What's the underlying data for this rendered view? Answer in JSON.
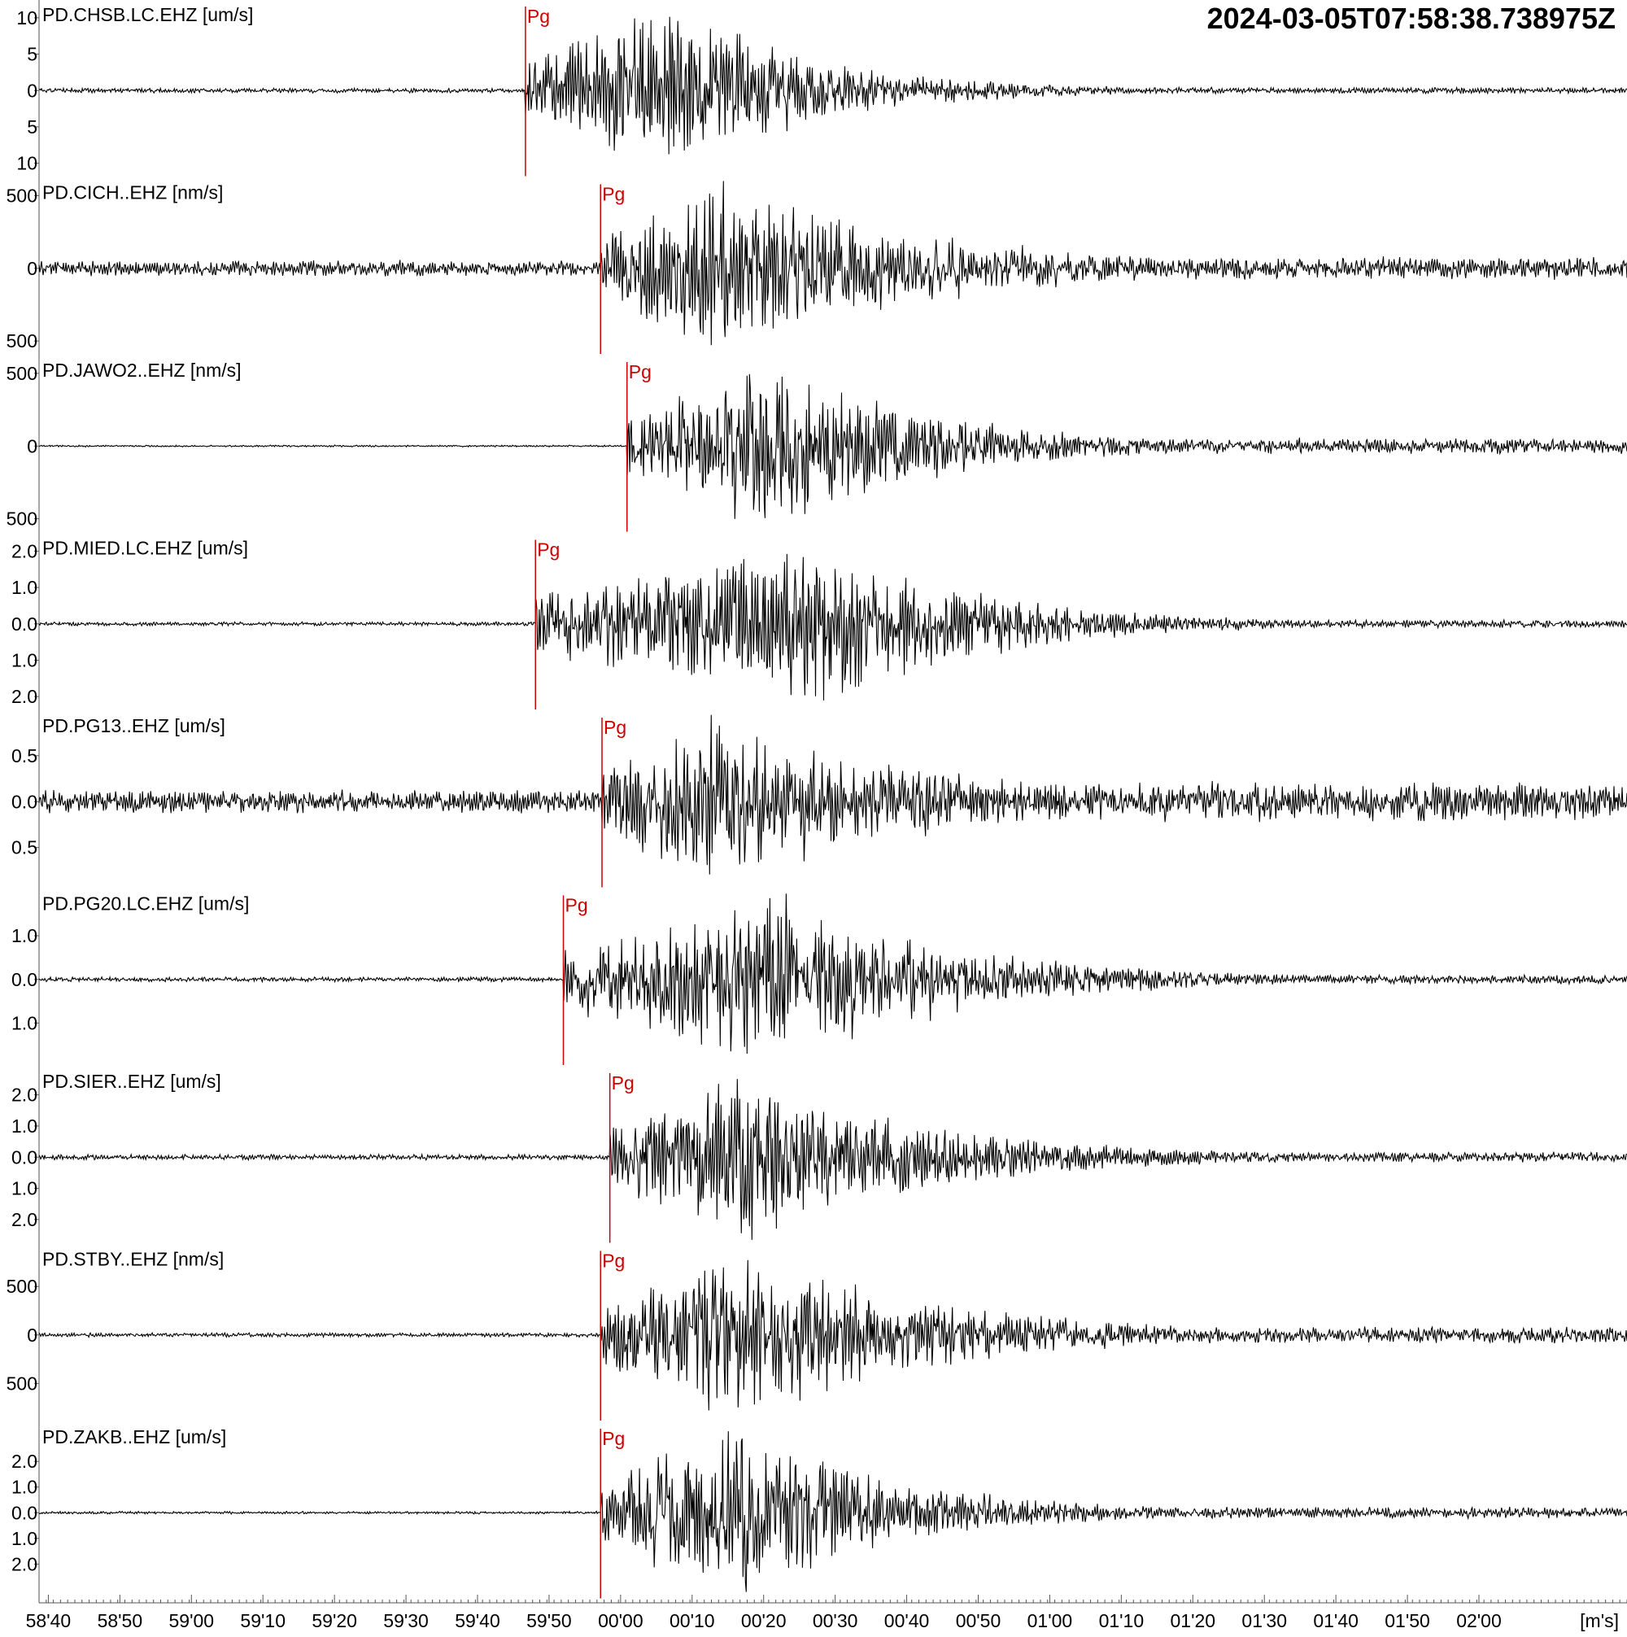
{
  "chart_data": {
    "type": "line",
    "title": "2024-03-05T07:58:38.738975Z",
    "time_axis": {
      "unit_label": "[m's]",
      "start_seconds": 0,
      "end_seconds": 222,
      "ticks": [
        {
          "t": 1.3,
          "label": "58'40"
        },
        {
          "t": 11.3,
          "label": "58'50"
        },
        {
          "t": 21.3,
          "label": "59'00"
        },
        {
          "t": 31.3,
          "label": "59'10"
        },
        {
          "t": 41.3,
          "label": "59'20"
        },
        {
          "t": 51.3,
          "label": "59'30"
        },
        {
          "t": 61.3,
          "label": "59'40"
        },
        {
          "t": 71.3,
          "label": "59'50"
        },
        {
          "t": 81.3,
          "label": "00'00"
        },
        {
          "t": 91.3,
          "label": "00'10"
        },
        {
          "t": 101.3,
          "label": "00'20"
        },
        {
          "t": 111.3,
          "label": "00'30"
        },
        {
          "t": 121.3,
          "label": "00'40"
        },
        {
          "t": 131.3,
          "label": "00'50"
        },
        {
          "t": 141.3,
          "label": "01'00"
        },
        {
          "t": 151.3,
          "label": "01'10"
        },
        {
          "t": 161.3,
          "label": "01'20"
        },
        {
          "t": 171.3,
          "label": "01'30"
        },
        {
          "t": 181.3,
          "label": "01'40"
        },
        {
          "t": 191.3,
          "label": "01'50"
        },
        {
          "t": 201.3,
          "label": "02'00"
        }
      ]
    },
    "series": [
      {
        "name": "PD.CHSB.LC.EHZ [um/s]",
        "pick": "Pg",
        "pick_seconds": 68.0,
        "ylim": [
          -12,
          12
        ],
        "yticks": [
          {
            "v": 10,
            "label": "10"
          },
          {
            "v": 5,
            "label": "5"
          },
          {
            "v": 0,
            "label": "0"
          },
          {
            "v": -5,
            "label": "5"
          },
          {
            "v": -10,
            "label": "10"
          }
        ],
        "noise": 0.3,
        "peak": 11.0,
        "peak_seconds": 89,
        "decay_seconds": 20,
        "tail": 0.4,
        "seed": 1
      },
      {
        "name": "PD.CICH..EHZ [nm/s]",
        "pick": "Pg",
        "pick_seconds": 78.5,
        "ylim": [
          -600,
          600
        ],
        "yticks": [
          {
            "v": 500,
            "label": "500"
          },
          {
            "v": 0,
            "label": "0"
          },
          {
            "v": -500,
            "label": "500"
          }
        ],
        "noise": 50,
        "peak": 580,
        "peak_seconds": 95,
        "decay_seconds": 30,
        "tail": 70,
        "seed": 2
      },
      {
        "name": "PD.JAWO2..EHZ [nm/s]",
        "pick": "Pg",
        "pick_seconds": 82.2,
        "ylim": [
          -600,
          600
        ],
        "yticks": [
          {
            "v": 500,
            "label": "500"
          },
          {
            "v": 0,
            "label": "0"
          },
          {
            "v": -500,
            "label": "500"
          }
        ],
        "noise": 6,
        "peak": 560,
        "peak_seconds": 103,
        "decay_seconds": 22,
        "tail": 50,
        "seed": 3
      },
      {
        "name": "PD.MIED.LC.EHZ [um/s]",
        "pick": "Pg",
        "pick_seconds": 69.4,
        "ylim": [
          -2.4,
          2.4
        ],
        "yticks": [
          {
            "v": 2.0,
            "label": "2.0"
          },
          {
            "v": 1.0,
            "label": "1.0"
          },
          {
            "v": 0.0,
            "label": "0.0"
          },
          {
            "v": -1.0,
            "label": "1.0"
          },
          {
            "v": -2.0,
            "label": "2.0"
          }
        ],
        "noise": 0.05,
        "peak": 2.2,
        "peak_seconds": 110,
        "decay_seconds": 22,
        "tail": 0.1,
        "seed": 4
      },
      {
        "name": "PD.PG13..EHZ [um/s]",
        "pick": "Pg",
        "pick_seconds": 78.7,
        "ylim": [
          -0.95,
          0.95
        ],
        "yticks": [
          {
            "v": 0.5,
            "label": "0.5"
          },
          {
            "v": 0.0,
            "label": "0.0"
          },
          {
            "v": -0.5,
            "label": "0.5"
          }
        ],
        "noise": 0.12,
        "peak": 0.9,
        "peak_seconds": 94,
        "decay_seconds": 30,
        "tail": 0.2,
        "seed": 5
      },
      {
        "name": "PD.PG20.LC.EHZ [um/s]",
        "pick": "Pg",
        "pick_seconds": 73.3,
        "ylim": [
          -2.0,
          2.0
        ],
        "yticks": [
          {
            "v": 1.0,
            "label": "1.0"
          },
          {
            "v": 0.0,
            "label": "0.0"
          },
          {
            "v": -1.0,
            "label": "1.0"
          }
        ],
        "noise": 0.05,
        "peak": 1.9,
        "peak_seconds": 104,
        "decay_seconds": 25,
        "tail": 0.1,
        "seed": 6
      },
      {
        "name": "PD.SIER..EHZ [um/s]",
        "pick": "Pg",
        "pick_seconds": 79.8,
        "ylim": [
          -2.8,
          2.8
        ],
        "yticks": [
          {
            "v": 2.0,
            "label": "2.0"
          },
          {
            "v": 1.0,
            "label": "1.0"
          },
          {
            "v": 0.0,
            "label": "0.0"
          },
          {
            "v": -1.0,
            "label": "1.0"
          },
          {
            "v": -2.0,
            "label": "2.0"
          }
        ],
        "noise": 0.08,
        "peak": 2.6,
        "peak_seconds": 100,
        "decay_seconds": 25,
        "tail": 0.15,
        "seed": 7
      },
      {
        "name": "PD.STBY..EHZ [nm/s]",
        "pick": "Pg",
        "pick_seconds": 78.5,
        "ylim": [
          -900,
          900
        ],
        "yticks": [
          {
            "v": 500,
            "label": "500"
          },
          {
            "v": 0,
            "label": "0"
          },
          {
            "v": -500,
            "label": "500"
          }
        ],
        "noise": 20,
        "peak": 850,
        "peak_seconds": 98,
        "decay_seconds": 28,
        "tail": 80,
        "seed": 8
      },
      {
        "name": "PD.ZAKB..EHZ [um/s]",
        "pick": "Pg",
        "pick_seconds": 78.5,
        "ylim": [
          -3.4,
          3.4
        ],
        "yticks": [
          {
            "v": 2.0,
            "label": "2.0"
          },
          {
            "v": 1.0,
            "label": "1.0"
          },
          {
            "v": 0.0,
            "label": "0.0"
          },
          {
            "v": -1.0,
            "label": "1.0"
          },
          {
            "v": -2.0,
            "label": "2.0"
          }
        ],
        "noise": 0.05,
        "peak": 3.2,
        "peak_seconds": 98,
        "decay_seconds": 22,
        "tail": 0.2,
        "seed": 9
      }
    ],
    "colors": {
      "trace": "#000000",
      "pick": "#cc0000",
      "frame": "#555555"
    }
  }
}
